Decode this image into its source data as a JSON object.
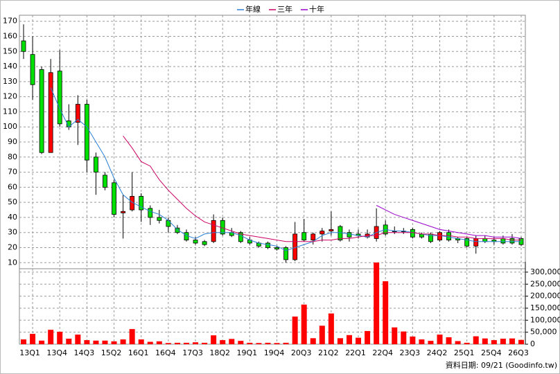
{
  "chart_data": {
    "type": "candlestick",
    "categories": [
      null,
      "13Q1",
      null,
      null,
      "13Q4",
      null,
      null,
      "14Q3",
      null,
      null,
      "15Q2",
      null,
      null,
      "16Q1",
      null,
      null,
      "16Q4",
      null,
      null,
      "17Q3",
      null,
      null,
      "18Q2",
      null,
      null,
      "19Q1",
      null,
      null,
      "19Q4",
      null,
      null,
      "20Q3",
      null,
      null,
      "21Q2",
      null,
      null,
      "22Q1",
      null,
      null,
      "22Q4",
      null,
      null,
      "23Q3",
      null,
      null,
      "24Q2",
      null,
      null,
      "25Q1",
      null,
      null,
      "25Q4",
      null,
      null,
      "26Q3"
    ],
    "open": [
      157,
      148,
      138,
      83,
      137,
      104,
      103,
      115,
      80,
      68,
      63,
      43,
      45,
      54,
      46,
      40,
      38,
      33,
      30,
      25,
      24,
      24,
      38,
      30,
      30,
      25,
      23,
      23,
      20,
      20,
      12,
      30,
      25,
      29,
      31,
      34,
      30,
      29,
      27,
      26,
      35,
      31,
      31,
      32,
      29,
      29,
      25,
      30,
      26,
      26,
      21,
      26,
      25,
      26,
      26,
      26
    ],
    "high": [
      168,
      160,
      140,
      145,
      151,
      115,
      121,
      118,
      83,
      70,
      65,
      55,
      70,
      56,
      48,
      45,
      40,
      35,
      32,
      27,
      25,
      42,
      40,
      33,
      31,
      27,
      24,
      24,
      21,
      21,
      37,
      39,
      30,
      33,
      44,
      35,
      32,
      32,
      32,
      46,
      38,
      34,
      33,
      33,
      30,
      30,
      31,
      32,
      27,
      27,
      28,
      28,
      27,
      28,
      29,
      27
    ],
    "low": [
      145,
      118,
      82,
      83,
      100,
      98,
      88,
      70,
      55,
      58,
      40,
      26,
      44,
      37,
      35,
      36,
      30,
      29,
      24,
      22,
      21,
      23,
      28,
      27,
      23,
      22,
      20,
      19,
      18,
      10,
      11,
      24,
      22,
      24,
      28,
      24,
      24,
      26,
      26,
      24,
      28,
      29,
      29,
      26,
      26,
      23,
      24,
      24,
      23,
      20,
      16,
      23,
      22,
      22,
      22,
      21
    ],
    "close": [
      150,
      128,
      83,
      136,
      102,
      100,
      115,
      78,
      70,
      60,
      42,
      44,
      54,
      45,
      40,
      38,
      34,
      30,
      25,
      23,
      22,
      38,
      29,
      28,
      24,
      23,
      21,
      20,
      19,
      12,
      29,
      25,
      29,
      31,
      32,
      25,
      27,
      28,
      29,
      34,
      29,
      31,
      31,
      27,
      27,
      24,
      30,
      25,
      25,
      21,
      26,
      24,
      24,
      23,
      23,
      22
    ],
    "up_color": "#ff0000",
    "down_color": "#00e000",
    "volume": [
      20000,
      43000,
      15000,
      60000,
      52000,
      23000,
      40000,
      17000,
      15000,
      15000,
      12000,
      20000,
      63000,
      20000,
      10000,
      12000,
      5000,
      6000,
      6000,
      8000,
      6000,
      37000,
      17000,
      22000,
      14000,
      6000,
      5000,
      6000,
      5000,
      6000,
      115000,
      165000,
      25000,
      77000,
      128000,
      25000,
      38000,
      27000,
      55000,
      340000,
      262000,
      70000,
      53000,
      32000,
      20000,
      14000,
      40000,
      29000,
      13000,
      6000,
      33000,
      24000,
      17000,
      23000,
      24000,
      18000
    ],
    "volume_color": "#ff0000",
    "series": [
      {
        "name": "年線",
        "color": "#2a7fd4",
        "values": [
          null,
          null,
          null,
          126,
          112,
          100,
          105,
          100,
          90,
          80,
          66,
          55,
          50,
          47,
          44,
          42,
          38,
          32,
          28,
          26,
          29,
          30,
          30,
          30,
          28,
          25,
          23,
          22,
          21,
          18,
          20,
          22,
          24,
          28,
          30,
          30,
          29,
          28,
          27,
          30,
          32,
          31,
          31,
          30,
          29,
          28,
          28,
          27,
          26,
          25,
          24,
          24,
          24,
          24,
          24,
          24
        ]
      },
      {
        "name": "三年",
        "color": "#cc0066",
        "values": [
          null,
          null,
          null,
          null,
          null,
          null,
          null,
          null,
          null,
          null,
          null,
          94,
          86,
          77,
          74,
          65,
          58,
          52,
          46,
          41,
          37,
          35,
          33,
          31,
          29,
          28,
          27,
          26,
          25,
          24,
          24,
          24,
          24,
          25,
          25,
          26,
          26,
          27,
          28,
          28,
          30,
          30,
          30,
          30,
          29,
          29,
          28,
          28,
          27,
          27,
          26,
          26,
          26,
          26,
          25,
          25
        ]
      },
      {
        "name": "十年",
        "color": "#9900cc",
        "values": [
          null,
          null,
          null,
          null,
          null,
          null,
          null,
          null,
          null,
          null,
          null,
          null,
          null,
          null,
          null,
          null,
          null,
          null,
          null,
          null,
          null,
          null,
          null,
          null,
          null,
          null,
          null,
          null,
          null,
          null,
          null,
          null,
          null,
          null,
          null,
          null,
          null,
          null,
          null,
          48,
          45,
          42,
          40,
          38,
          36,
          34,
          32,
          31,
          30,
          29,
          28,
          28,
          27,
          27,
          27,
          26
        ]
      }
    ],
    "ylim": [
      6,
      174
    ],
    "yticks": [
      10,
      20,
      30,
      40,
      50,
      60,
      70,
      80,
      90,
      100,
      110,
      120,
      130,
      140,
      150,
      160,
      170
    ],
    "y2lim": [
      0,
      343000
    ],
    "y2ticks": [
      0,
      {
        "value": 50000,
        "label": "50,000"
      },
      {
        "value": 100000,
        "label": "100,000"
      },
      {
        "value": 150000,
        "label": "150,000"
      },
      {
        "value": 200000,
        "label": "200,000"
      },
      {
        "value": 250000,
        "label": "250,000"
      },
      {
        "value": 300000,
        "label": "300,000"
      }
    ],
    "grid": true,
    "legend": "top",
    "date_note": "資料日期: 09/21  (Goodinfo.tw)"
  }
}
